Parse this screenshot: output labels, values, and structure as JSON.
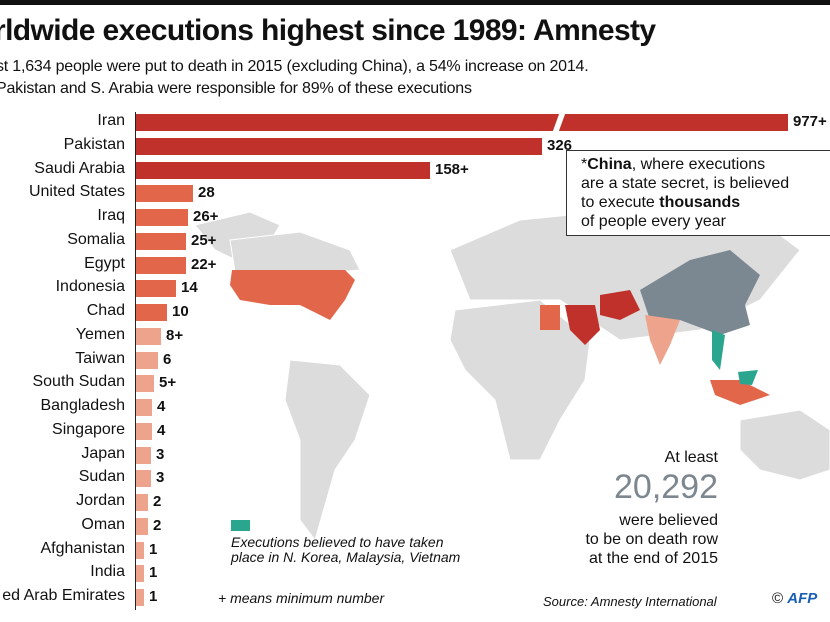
{
  "title": "rldwide executions highest since 1989: Amnesty",
  "subtitle_line1": "st 1,634 people were put to death in 2015 (excluding China), a 54% increase on 2014.",
  "subtitle_line2": "Pakistan and S. Arabia were responsible for 89% of these executions",
  "colors": {
    "high": "#c0312b",
    "mid": "#e2674a",
    "low": "#eea38d",
    "china": "#7b8891",
    "teal": "#2aa68f",
    "land": "#dcdcdc"
  },
  "chart_data": {
    "type": "bar",
    "orientation": "horizontal",
    "categories": [
      "Iran",
      "Pakistan",
      "Saudi Arabia",
      "United States",
      "Iraq",
      "Somalia",
      "Egypt",
      "Indonesia",
      "Chad",
      "Yemen",
      "Taiwan",
      "South Sudan",
      "Bangladesh",
      "Singapore",
      "Japan",
      "Sudan",
      "Jordan",
      "Oman",
      "Afghanistan",
      "India",
      "ed Arab Emirates"
    ],
    "values": [
      977,
      326,
      158,
      28,
      26,
      25,
      22,
      14,
      10,
      8,
      6,
      5,
      4,
      4,
      3,
      3,
      2,
      2,
      1,
      1,
      1
    ],
    "labels": [
      "977+",
      "326",
      "158+",
      "28",
      "26+",
      "25+",
      "22+",
      "14",
      "10",
      "8+",
      "6",
      "5+",
      "4",
      "4",
      "3",
      "3",
      "2",
      "2",
      "1",
      "1",
      "1"
    ],
    "axis_break": "Iran"
  },
  "callout": {
    "china": "China",
    "part1": "*",
    "part2": ", where executions",
    "line2": "are a state secret, is believed",
    "line3a": "to execute ",
    "line3b": "thousands",
    "line4": "of people every year"
  },
  "legend": {
    "line1": "Executions believed to have taken",
    "line2": "place in N. Korea, Malaysia, Vietnam",
    "plus_note": "+ means minimum number"
  },
  "death_row": {
    "pre": "At least",
    "number": "20,292",
    "line1": "were believed",
    "line2": "to be on death row",
    "line3": "at the end of 2015"
  },
  "source": "Source: Amnesty International",
  "credit": {
    "symbol": "©",
    "logo": "AFP"
  }
}
